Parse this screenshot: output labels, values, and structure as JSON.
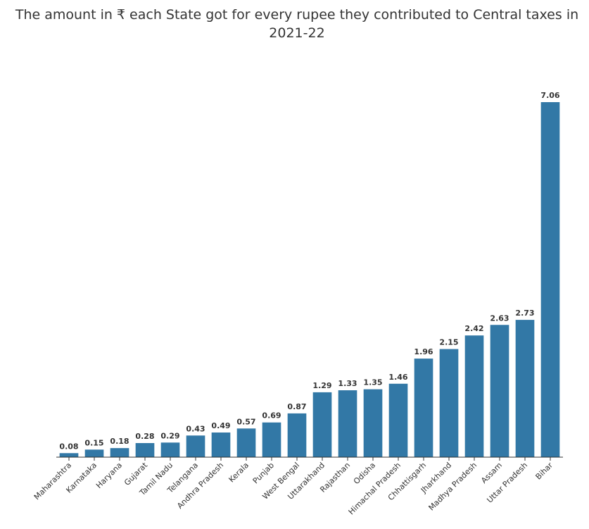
{
  "chart_data": {
    "type": "bar",
    "title": "The amount in ₹ each State got for every rupee they contributed to Central taxes in 2021-22",
    "xlabel": "",
    "ylabel": "",
    "ylim": [
      0,
      7.06
    ],
    "grid": false,
    "legend": "none",
    "bar_color": "#3278a6",
    "categories": [
      "Maharashtra",
      "Karnataka",
      "Haryana",
      "Gujarat",
      "Tamil Nadu",
      "Telangana",
      "Andhra Pradesh",
      "Kerala",
      "Punjab",
      "West Bengal",
      "Uttarakhand",
      "Rajasthan",
      "Odisha",
      "Himachal Pradesh",
      "Chhattisgarh",
      "Jharkhand",
      "Madhya Pradesh",
      "Assam",
      "Uttar Pradesh",
      "Bihar"
    ],
    "values": [
      0.08,
      0.15,
      0.18,
      0.28,
      0.29,
      0.43,
      0.49,
      0.57,
      0.69,
      0.87,
      1.29,
      1.33,
      1.35,
      1.46,
      1.96,
      2.15,
      2.42,
      2.63,
      2.73,
      7.06
    ],
    "value_labels": [
      "0.08",
      "0.15",
      "0.18",
      "0.28",
      "0.29",
      "0.43",
      "0.49",
      "0.57",
      "0.69",
      "0.87",
      "1.29",
      "1.33",
      "1.35",
      "1.46",
      "1.96",
      "2.15",
      "2.42",
      "2.63",
      "2.73",
      "7.06"
    ]
  }
}
